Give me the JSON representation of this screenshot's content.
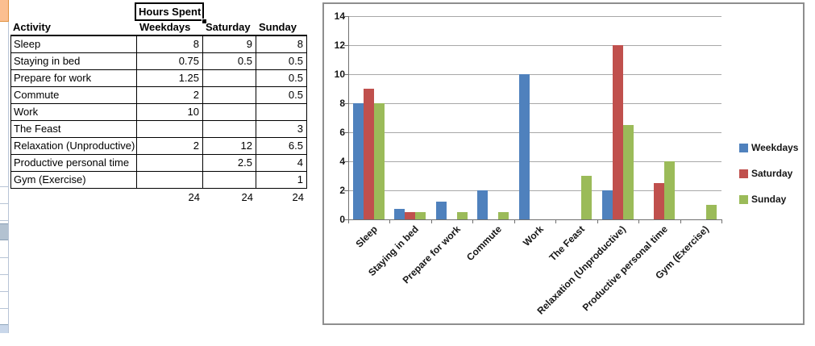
{
  "spreadsheet": {
    "selected_cell": {
      "value": "Hours Spent"
    },
    "table": {
      "columns": [
        "Activity",
        "Weekdays",
        "Saturday",
        "Sunday"
      ],
      "rows": [
        [
          "Sleep",
          "8",
          "9",
          "8"
        ],
        [
          "Staying in bed",
          "0.75",
          "0.5",
          "0.5"
        ],
        [
          "Prepare for work",
          "1.25",
          "",
          "0.5"
        ],
        [
          "Commute",
          "2",
          "",
          "0.5"
        ],
        [
          "Work",
          "10",
          "",
          ""
        ],
        [
          "The Feast",
          "",
          "",
          "3"
        ],
        [
          "Relaxation (Unproductive)",
          "2",
          "12",
          "6.5"
        ],
        [
          "Productive personal time",
          "",
          "2.5",
          "4"
        ],
        [
          "Gym (Exercise)",
          "",
          "",
          "1"
        ]
      ],
      "totals": [
        "24",
        "24",
        "24"
      ]
    }
  },
  "chart_data": {
    "type": "bar",
    "title": "",
    "categories": [
      "Sleep",
      "Staying in bed",
      "Prepare for work",
      "Commute",
      "Work",
      "The Feast",
      "Relaxation (Unproductive)",
      "Productive personal time",
      "Gym (Exercise)"
    ],
    "series": [
      {
        "name": "Weekdays",
        "color": "#4F81BD",
        "values": [
          8,
          0.75,
          1.25,
          2,
          10,
          null,
          2,
          null,
          null
        ]
      },
      {
        "name": "Saturday",
        "color": "#C0504D",
        "values": [
          9,
          0.5,
          null,
          null,
          null,
          null,
          12,
          2.5,
          null
        ]
      },
      {
        "name": "Sunday",
        "color": "#9BBB59",
        "values": [
          8,
          0.5,
          0.5,
          0.5,
          null,
          3,
          6.5,
          4,
          1
        ]
      }
    ],
    "ylim": [
      0,
      14
    ],
    "ytick_step": 2,
    "grid": true,
    "legend_position": "right"
  },
  "colors": {
    "series_weekdays": "#4F81BD",
    "series_saturday": "#C0504D",
    "series_sunday": "#9BBB59",
    "strip_highlight_cell": "#FBBF90",
    "selection_border": "#000000"
  }
}
